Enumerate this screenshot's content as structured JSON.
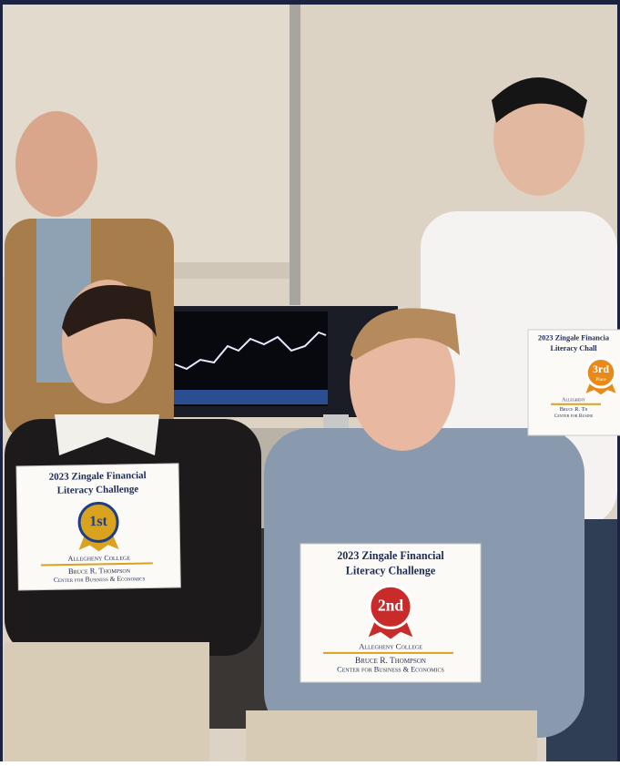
{
  "certificates": [
    {
      "title_line1": "2023 Zingale Financial",
      "title_line2": "Literacy Challenge",
      "ribbon": "1st",
      "college": "Allegheny College",
      "center": "Bruce R. Thompson",
      "center_sub": "Center for Business & Economics"
    },
    {
      "title_line1": "2023 Zingale Financial",
      "title_line2": "Literacy Challenge",
      "ribbon": "2nd",
      "college": "Allegheny College",
      "center": "Bruce R. Thompson",
      "center_sub": "Center for Business & Economics"
    },
    {
      "title_line1": "2023 Zingale Financia",
      "title_line2": "Literacy Chall",
      "ribbon": "3rd",
      "ribbon_sub": "Place",
      "college": "Allegheny",
      "center": "Bruce R. Th",
      "center_sub": "Center for Busine"
    }
  ]
}
